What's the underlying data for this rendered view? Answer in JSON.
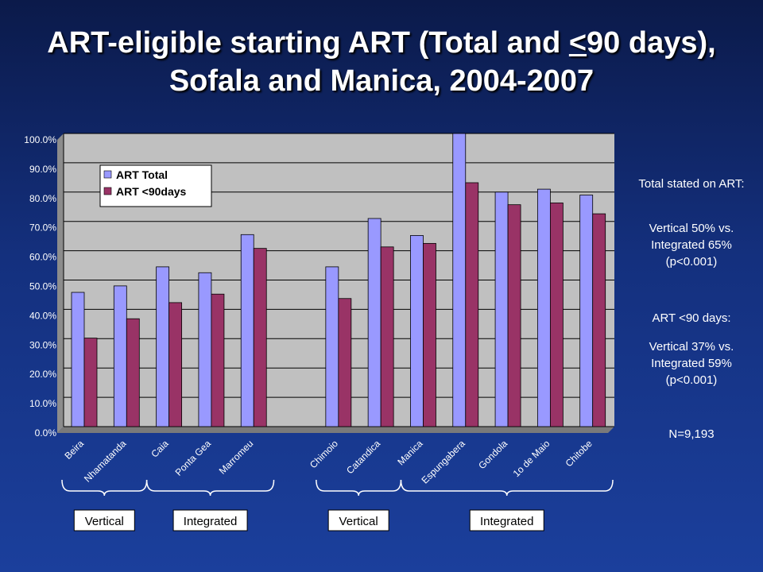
{
  "title": {
    "part1": "ART-eligible starting ART (Total and ",
    "lt": "<",
    "part2": "90 days), Sofala and Manica, 2004-2007"
  },
  "chart_data": {
    "type": "bar",
    "categories": [
      "Beira",
      "Nhamatanda",
      "Caia",
      "Ponta Gea",
      "Marromeu",
      "",
      "Chimoio",
      "Catandica",
      "Manica",
      "Espungabera",
      "Gondola",
      "1o de Maio",
      "Chitobe"
    ],
    "series": [
      {
        "name": "ART Total",
        "color": "#9999ff",
        "values": [
          45.8,
          48.0,
          54.5,
          52.5,
          65.5,
          null,
          54.5,
          71.0,
          65.2,
          100.0,
          80.0,
          81.0,
          79.0
        ]
      },
      {
        "name": "ART <90days",
        "color": "#993366",
        "values": [
          30.2,
          36.8,
          42.3,
          45.2,
          60.8,
          null,
          43.7,
          61.3,
          62.5,
          83.2,
          75.7,
          76.3,
          72.6
        ]
      }
    ],
    "ylim": [
      0,
      100
    ],
    "yticks": [
      "0.0%",
      "10.0%",
      "20.0%",
      "30.0%",
      "40.0%",
      "50.0%",
      "60.0%",
      "70.0%",
      "80.0%",
      "90.0%",
      "100.0%"
    ],
    "grid": true,
    "plot_background": "#c0c0c0",
    "legend": "top-left",
    "groups": [
      {
        "label": "Vertical",
        "first": 0,
        "last": 1
      },
      {
        "label": "Integrated",
        "first": 2,
        "last": 4
      },
      {
        "label": "Vertical",
        "first": 6,
        "last": 7
      },
      {
        "label": "Integrated",
        "first": 8,
        "last": 12
      }
    ]
  },
  "side_notes": {
    "total_head": "Total stated on ART:",
    "total_body": "Vertical 50% vs. Integrated 65% (p<0.001)",
    "days_head": "ART <90 days:",
    "days_body": "Vertical 37% vs. Integrated 59% (p<0.001)",
    "n": "N=9,193"
  }
}
